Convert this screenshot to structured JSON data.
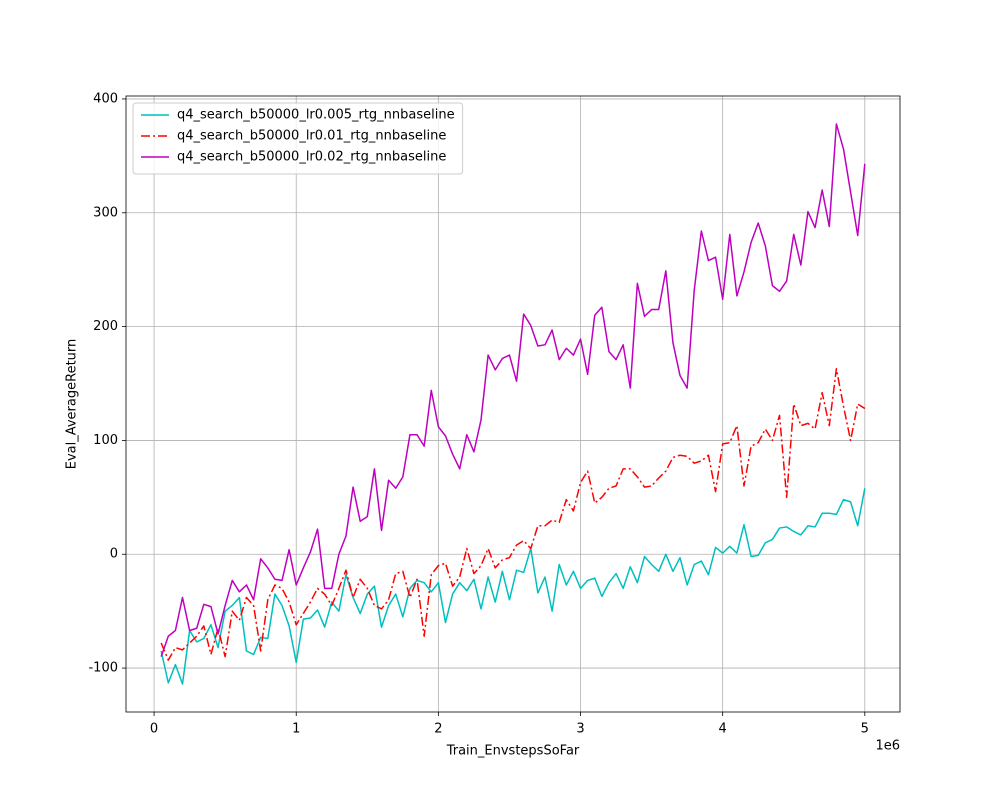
{
  "chart_data": {
    "type": "line",
    "xlabel": "Train_EnvstepsSoFar",
    "ylabel": "Eval_AverageReturn",
    "x_offset_label": "1e6",
    "x": [
      50000,
      100000,
      150000,
      200000,
      250000,
      300000,
      350000,
      400000,
      450000,
      500000,
      550000,
      600000,
      650000,
      700000,
      750000,
      800000,
      850000,
      900000,
      950000,
      1000000,
      1050000,
      1100000,
      1150000,
      1200000,
      1250000,
      1300000,
      1350000,
      1400000,
      1450000,
      1500000,
      1550000,
      1600000,
      1650000,
      1700000,
      1750000,
      1800000,
      1850000,
      1900000,
      1950000,
      2000000,
      2050000,
      2100000,
      2150000,
      2200000,
      2250000,
      2300000,
      2350000,
      2400000,
      2450000,
      2500000,
      2550000,
      2600000,
      2650000,
      2700000,
      2750000,
      2800000,
      2850000,
      2900000,
      2950000,
      3000000,
      3050000,
      3100000,
      3150000,
      3200000,
      3250000,
      3300000,
      3350000,
      3400000,
      3450000,
      3500000,
      3550000,
      3600000,
      3650000,
      3700000,
      3750000,
      3800000,
      3850000,
      3900000,
      3950000,
      4000000,
      4050000,
      4100000,
      4150000,
      4200000,
      4250000,
      4300000,
      4350000,
      4400000,
      4450000,
      4500000,
      4550000,
      4600000,
      4650000,
      4700000,
      4750000,
      4800000,
      4850000,
      4900000,
      4950000,
      5000000
    ],
    "series": [
      {
        "name": "q4_search_b50000_lr0.005_rtg_nnbaseline",
        "color": "#00bfbf",
        "linestyle": "solid",
        "values": [
          -85,
          -113,
          -97,
          -114,
          -67,
          -77,
          -74,
          -62,
          -82,
          -50,
          -45,
          -38,
          -85,
          -88,
          -73,
          -74,
          -35,
          -45,
          -63,
          -95,
          -57,
          -56,
          -49,
          -64,
          -42,
          -50,
          -18,
          -38,
          -52,
          -35,
          -28,
          -64,
          -45,
          -35,
          -55,
          -30,
          -23,
          -25,
          -33,
          -25,
          -60,
          -35,
          -25,
          -32,
          -22,
          -48,
          -20,
          -42,
          -15,
          -40,
          -14,
          -16,
          5,
          -34,
          -20,
          -50,
          -9,
          -27,
          -15,
          -30,
          -23,
          -21,
          -37,
          -25,
          -17,
          -30,
          -11,
          -25,
          -2,
          -9,
          -15,
          0,
          -15,
          -3,
          -27,
          -9,
          -6,
          -18,
          6,
          1,
          7,
          1,
          26,
          -2,
          -1,
          10,
          13,
          23,
          24,
          20,
          17,
          25,
          24,
          36,
          36,
          35,
          48,
          46,
          25,
          58
        ]
      },
      {
        "name": "q4_search_b50000_lr0.01_rtg_nnbaseline",
        "color": "#ff0000",
        "linestyle": "dashdot",
        "values": [
          -78,
          -93,
          -82,
          -84,
          -78,
          -72,
          -63,
          -88,
          -65,
          -90,
          -50,
          -58,
          -38,
          -45,
          -85,
          -40,
          -27,
          -30,
          -42,
          -62,
          -52,
          -42,
          -30,
          -35,
          -45,
          -30,
          -14,
          -38,
          -22,
          -30,
          -45,
          -48,
          -40,
          -17,
          -15,
          -38,
          -22,
          -72,
          -18,
          -10,
          -8,
          -28,
          -20,
          5,
          -17,
          -10,
          5,
          -12,
          -5,
          -3,
          8,
          12,
          5,
          25,
          25,
          30,
          28,
          48,
          38,
          63,
          73,
          45,
          50,
          58,
          60,
          75,
          75,
          68,
          59,
          60,
          67,
          73,
          85,
          87,
          86,
          80,
          82,
          87,
          55,
          97,
          98,
          113,
          60,
          95,
          98,
          110,
          100,
          122,
          50,
          132,
          113,
          115,
          110,
          142,
          113,
          163,
          130,
          100,
          132,
          128
        ]
      },
      {
        "name": "q4_search_b50000_lr0.02_rtg_nnbaseline",
        "color": "#bf00bf",
        "linestyle": "solid",
        "values": [
          -90,
          -72,
          -67,
          -38,
          -67,
          -65,
          -44,
          -46,
          -70,
          -45,
          -23,
          -33,
          -27,
          -40,
          -4,
          -12,
          -22,
          -23,
          4,
          -27,
          -12,
          2,
          22,
          -30,
          -30,
          0,
          16,
          59,
          29,
          33,
          75,
          21,
          65,
          58,
          68,
          105,
          105,
          95,
          144,
          112,
          104,
          88,
          75,
          105,
          90,
          118,
          175,
          162,
          172,
          175,
          152,
          211,
          201,
          183,
          184,
          197,
          171,
          181,
          175,
          189,
          158,
          210,
          217,
          178,
          171,
          184,
          146,
          238,
          209,
          215,
          215,
          249,
          186,
          157,
          146,
          232,
          284,
          258,
          261,
          224,
          281,
          227,
          248,
          274,
          291,
          271,
          236,
          231,
          240,
          281,
          254,
          301,
          287,
          320,
          288,
          378,
          356,
          318,
          280,
          343
        ]
      }
    ],
    "xlim": [
      -197500,
      5247500
    ],
    "ylim": [
      -138.6,
      402.6
    ],
    "xticks": [
      0,
      {
        "value": 1000000,
        "label": "1"
      },
      {
        "value": 2000000,
        "label": "2"
      },
      {
        "value": 3000000,
        "label": "3"
      },
      {
        "value": 4000000,
        "label": "4"
      },
      {
        "value": 5000000,
        "label": "5"
      }
    ],
    "yticks": [
      -100,
      0,
      100,
      200,
      300,
      400
    ],
    "grid": true,
    "legend": "upper left"
  }
}
